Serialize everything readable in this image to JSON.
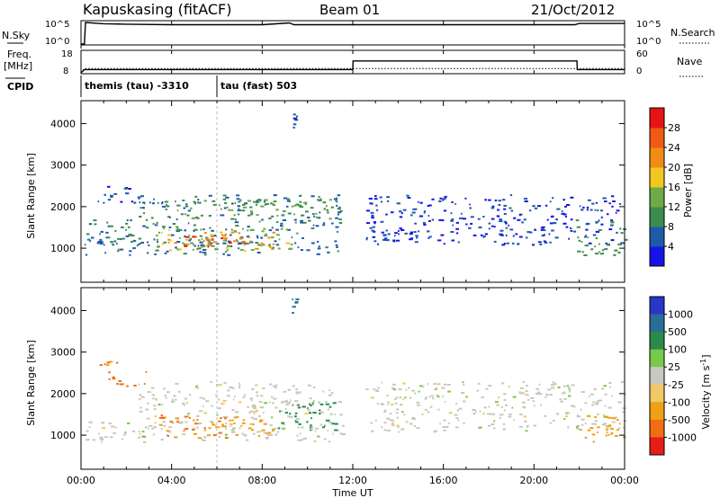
{
  "header": {
    "station": "Kapuskasing (fitACF)",
    "beam": "Beam 01",
    "date": "21/Oct/2012"
  },
  "sky_panel": {
    "left_label": "N.Sky",
    "right_label": "N.Search",
    "left_ticks": [
      "10^5",
      "10^0"
    ],
    "right_ticks": [
      "10^5",
      "10^0"
    ]
  },
  "freq_panel": {
    "left_label_line1": "Freq.",
    "left_label_line2": "[MHz]",
    "right_label": "Nave",
    "left_ticks": [
      "18",
      "8"
    ],
    "right_ticks": [
      "60",
      "0"
    ]
  },
  "cpid": {
    "label": "CPID",
    "segments": [
      {
        "text": "themis (tau) -3310",
        "start_hour": 0
      },
      {
        "text": "tau (fast) 503",
        "start_hour": 6
      }
    ]
  },
  "time_axis": {
    "label": "Time UT",
    "ticks": [
      "00:00",
      "04:00",
      "08:00",
      "12:00",
      "16:00",
      "20:00",
      "00:00"
    ],
    "range_hours": [
      0,
      24
    ]
  },
  "colors": {
    "power": [
      "#1414e6",
      "#1e5aaa",
      "#3c8c50",
      "#6eaa46",
      "#f0c81e",
      "#f08c14",
      "#f05a14",
      "#e61414"
    ],
    "velocity": [
      "#2a36c8",
      "#2a6e98",
      "#2a8a4a",
      "#78c84a",
      "#c8c8c0",
      "#f0c864",
      "#f0a014",
      "#f06e14",
      "#e61e14"
    ]
  },
  "chart_data": [
    {
      "type": "line",
      "title": "",
      "ylabel": "N.Sky / N.Search",
      "ylim": [
        1,
        100000
      ],
      "log_scale": true,
      "series": [
        {
          "name": "N.Sky",
          "style": "solid",
          "x": [
            0,
            0.15,
            0.2,
            1,
            2,
            4,
            8,
            9.2,
            9.4,
            12,
            20,
            21.8,
            22,
            24
          ],
          "values": [
            1,
            1,
            100000,
            50000,
            40000,
            30000,
            30000,
            80000,
            30000,
            30000,
            30000,
            30000,
            60000,
            60000
          ]
        }
      ]
    },
    {
      "type": "line",
      "title": "",
      "ylabel": "Freq. [MHz] / Nave",
      "ylim": [
        8,
        18
      ],
      "series": [
        {
          "name": "Freq.",
          "style": "solid",
          "x": [
            0,
            0.15,
            12,
            12.01,
            21.9,
            21.91,
            24
          ],
          "values": [
            8,
            9.5,
            9.5,
            13.5,
            13.5,
            9.5,
            9.5
          ]
        },
        {
          "name": "Nave",
          "style": "dotted",
          "x": [
            0,
            0.15,
            24
          ],
          "values": [
            8,
            10,
            10
          ]
        }
      ]
    },
    {
      "type": "heatmap",
      "title": "",
      "quantity": "power",
      "xlabel": "",
      "ylabel": "Slant Range [km]",
      "ylim": [
        180,
        4550
      ],
      "yticks": [
        1000,
        2000,
        3000,
        4000
      ],
      "colorbar": {
        "label": "Power [dB]",
        "ticks": [
          "4",
          "8",
          "12",
          "16",
          "20",
          "24",
          "28"
        ],
        "range": [
          0,
          32
        ]
      },
      "regions": [
        {
          "t": [
            0.15,
            11.7
          ],
          "r": [
            850,
            1350
          ],
          "value": 7
        },
        {
          "t": [
            0.15,
            3.0
          ],
          "r": [
            1100,
            1700
          ],
          "value": 9
        },
        {
          "t": [
            2.5,
            11.5
          ],
          "r": [
            1400,
            2300
          ],
          "value": 8
        },
        {
          "t": [
            4.0,
            11.0
          ],
          "r": [
            1700,
            2200
          ],
          "value": 12
        },
        {
          "t": [
            3.3,
            9.5
          ],
          "r": [
            950,
            1500
          ],
          "value": 15
        },
        {
          "t": [
            3.8,
            8.5
          ],
          "r": [
            1000,
            1400
          ],
          "value": 22
        },
        {
          "t": [
            4.5,
            7.0
          ],
          "r": [
            1050,
            1300
          ],
          "value": 27
        },
        {
          "t": [
            0.7,
            3.2
          ],
          "r": [
            2100,
            2500
          ],
          "value": 5
        },
        {
          "t": [
            9.3,
            9.5
          ],
          "r": [
            3900,
            4400
          ],
          "value": 5
        },
        {
          "t": [
            12.5,
            24
          ],
          "r": [
            1100,
            2300
          ],
          "value": 4
        },
        {
          "t": [
            21.8,
            24
          ],
          "r": [
            850,
            1700
          ],
          "value": 10
        }
      ]
    },
    {
      "type": "heatmap",
      "title": "",
      "quantity": "velocity",
      "xlabel": "Time UT",
      "ylabel": "Slant Range [km]",
      "ylim": [
        180,
        4550
      ],
      "yticks": [
        1000,
        2000,
        3000,
        4000
      ],
      "colorbar": {
        "label": "Velocity [m s^-1]",
        "units_superscript": "-1",
        "ticks": [
          "1000",
          "500",
          "100",
          "25",
          "-25",
          "-100",
          "-500",
          "-1000"
        ]
      },
      "regions": [
        {
          "t": [
            0.15,
            11.7
          ],
          "r": [
            850,
            1350
          ],
          "value": 0
        },
        {
          "t": [
            2.5,
            11.5
          ],
          "r": [
            1400,
            2300
          ],
          "value": 0
        },
        {
          "t": [
            3.2,
            7.0
          ],
          "r": [
            950,
            1500
          ],
          "value": -300
        },
        {
          "t": [
            5.5,
            8.5
          ],
          "r": [
            1000,
            1400
          ],
          "value": -150
        },
        {
          "t": [
            8.5,
            11.2
          ],
          "r": [
            1100,
            1800
          ],
          "value": 150
        },
        {
          "t": [
            1.2,
            2.9
          ],
          "r": [
            2200,
            2600
          ],
          "value": -500
        },
        {
          "t": [
            0.8,
            1.6
          ],
          "r": [
            2700,
            2800
          ],
          "value": -300
        },
        {
          "t": [
            9.3,
            9.5
          ],
          "r": [
            3900,
            4400
          ],
          "value": 500
        },
        {
          "t": [
            12.5,
            24
          ],
          "r": [
            1100,
            2300
          ],
          "value": 0
        },
        {
          "t": [
            21.8,
            24
          ],
          "r": [
            850,
            1500
          ],
          "value": -150
        }
      ]
    }
  ]
}
